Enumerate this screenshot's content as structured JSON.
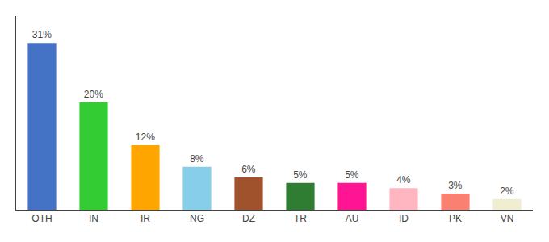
{
  "chart_data": {
    "type": "bar",
    "categories": [
      "OTH",
      "IN",
      "IR",
      "NG",
      "DZ",
      "TR",
      "AU",
      "ID",
      "PK",
      "VN"
    ],
    "values": [
      31,
      20,
      12,
      8,
      6,
      5,
      5,
      4,
      3,
      2
    ],
    "value_labels": [
      "31%",
      "20%",
      "12%",
      "8%",
      "6%",
      "5%",
      "5%",
      "4%",
      "3%",
      "2%"
    ],
    "colors": [
      "#4472C4",
      "#33CC33",
      "#FFA500",
      "#87CEEB",
      "#A0522D",
      "#2E7D32",
      "#FF1493",
      "#FFB6C1",
      "#FA8072",
      "#F0EDD0"
    ],
    "ylim": [
      0,
      36
    ],
    "data_labels": true,
    "tick_labels": "x",
    "grid": false
  }
}
